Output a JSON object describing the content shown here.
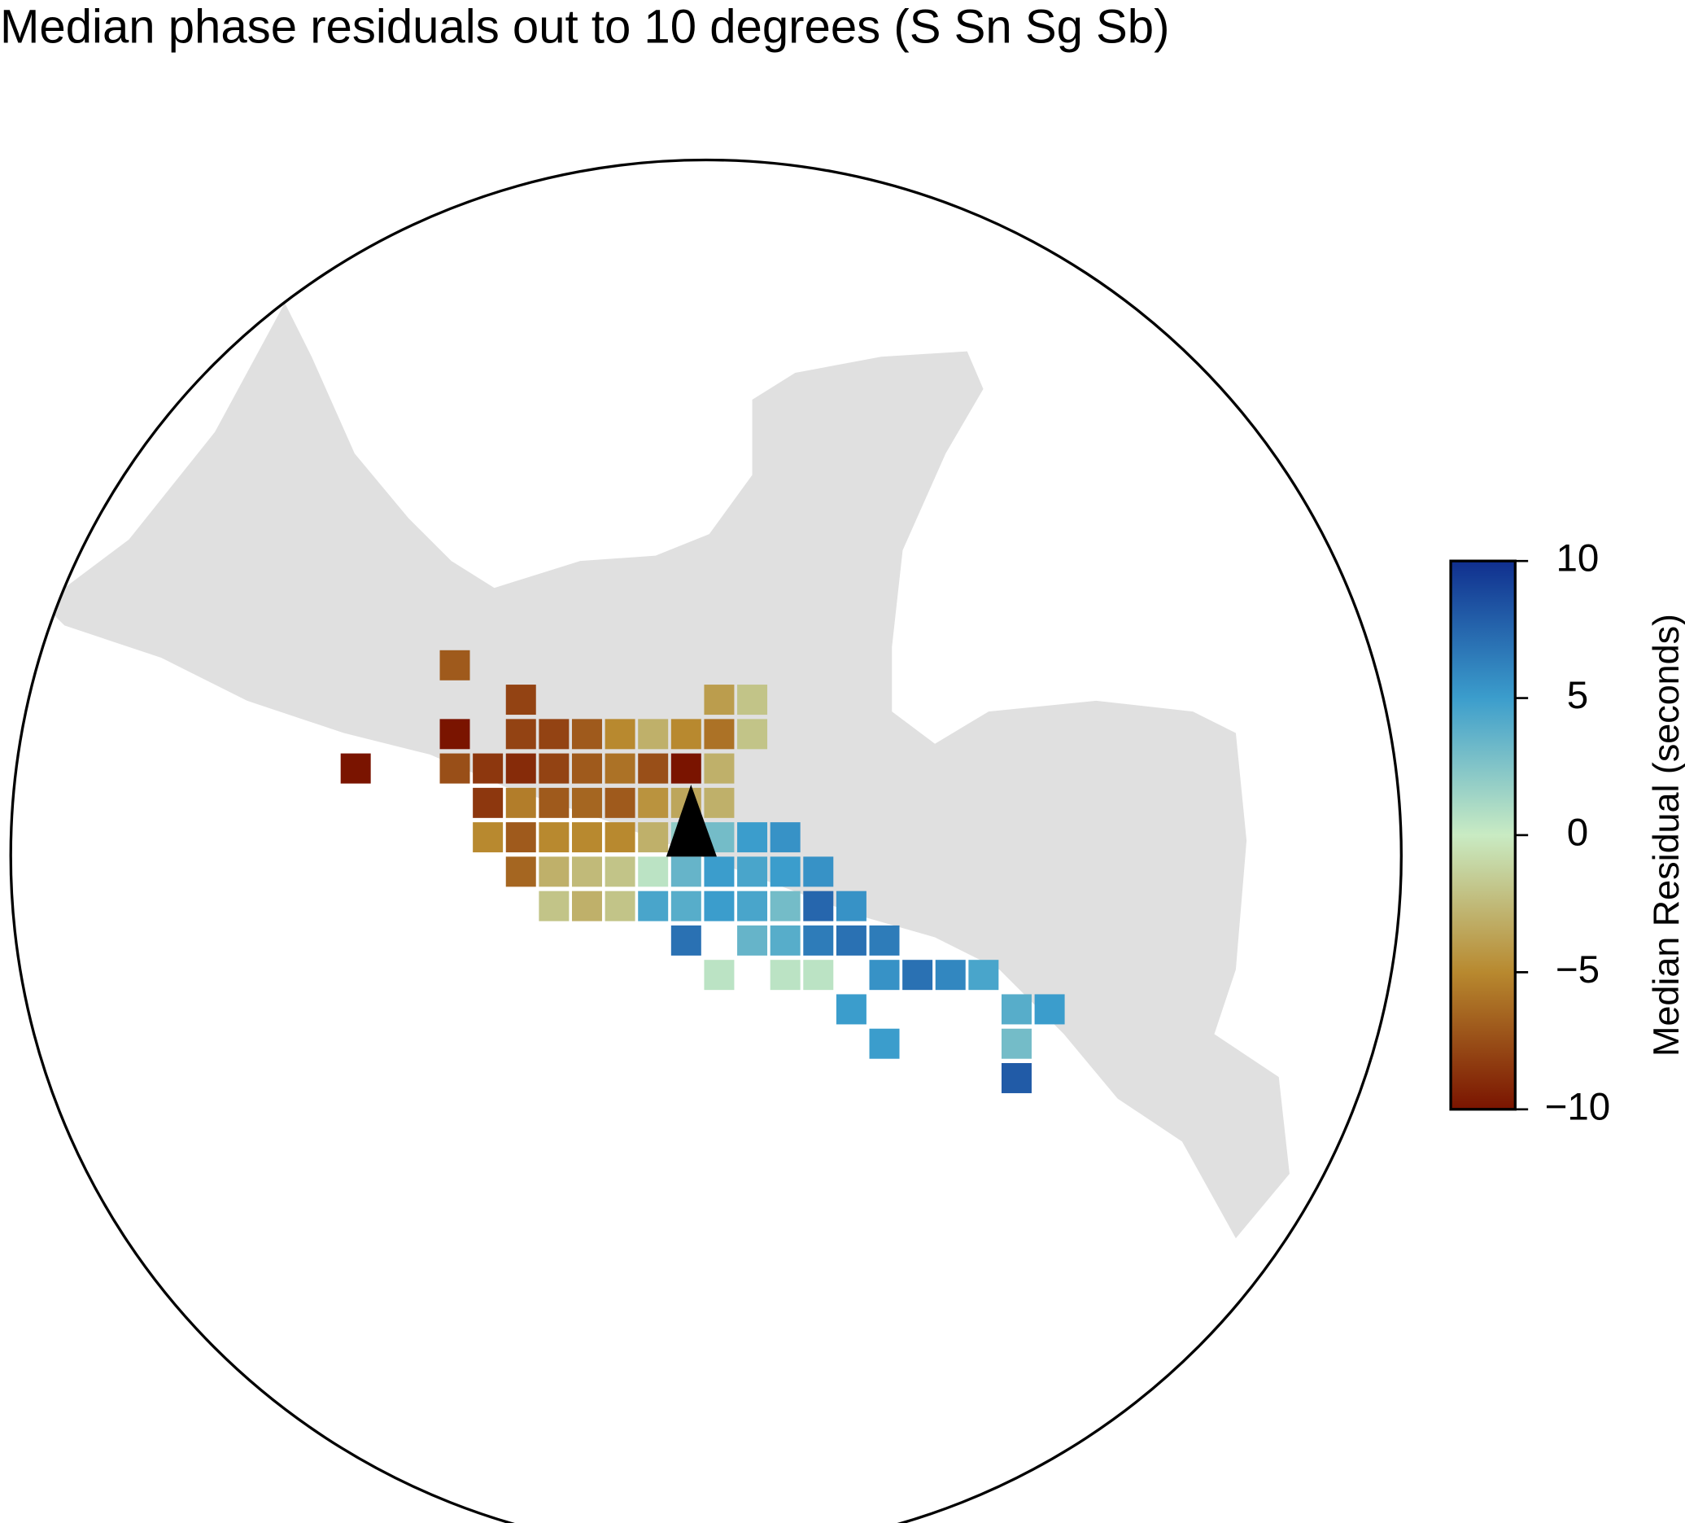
{
  "chart_data": {
    "type": "grid-map",
    "title": "Median phase residuals out to 10 degrees (S Sn Sg Sb)",
    "zlabel": "Median Residual (seconds)",
    "zlim": [
      -10,
      10
    ],
    "zticks": [
      {
        "value": -10,
        "label": "−10"
      },
      {
        "value": -5,
        "label": "−5"
      },
      0,
      5,
      10
    ],
    "colors": [
      "#7a1400",
      "#b8892f",
      "#c9ebc3",
      "#3b9dcc",
      "#102f8e"
    ],
    "rows": [
      [
        null,
        null,
        null,
        -7,
        null,
        null,
        null,
        null,
        null,
        null,
        null,
        null,
        null,
        null,
        null,
        null,
        null,
        null,
        null,
        null,
        null,
        null
      ],
      [
        null,
        null,
        null,
        null,
        null,
        -8,
        null,
        null,
        null,
        null,
        null,
        -4,
        -2,
        null,
        null,
        null,
        null,
        null,
        null,
        null,
        null,
        null
      ],
      [
        null,
        null,
        null,
        -10,
        null,
        -8,
        -8,
        -7,
        -5,
        -3,
        -5,
        -6,
        -2,
        null,
        null,
        null,
        null,
        null,
        null,
        null,
        null,
        null
      ],
      [
        -10,
        null,
        null,
        -7.5,
        -8.5,
        -9,
        -8,
        -7,
        -6,
        -7.5,
        -10,
        -3,
        null,
        null,
        null,
        null,
        null,
        null,
        null,
        null,
        null,
        null
      ],
      [
        null,
        null,
        null,
        null,
        -8.5,
        -5.5,
        -7,
        -6.5,
        -7,
        -4.5,
        -3.5,
        -3,
        null,
        null,
        null,
        null,
        null,
        null,
        null,
        null,
        null,
        null
      ],
      [
        null,
        null,
        null,
        null,
        -5,
        -7,
        -5,
        -5,
        -5,
        -3,
        2,
        3,
        5,
        5.5,
        null,
        null,
        null,
        null,
        null,
        null,
        null,
        null
      ],
      [
        null,
        null,
        null,
        null,
        null,
        -6.5,
        -3,
        -2.5,
        -2,
        0.5,
        3.5,
        5,
        4.5,
        5,
        5.5,
        null,
        null,
        null,
        null,
        null,
        null,
        null
      ],
      [
        null,
        null,
        null,
        null,
        null,
        null,
        -2,
        -3,
        -2,
        4.5,
        4,
        5,
        4.5,
        3,
        7.5,
        5.5,
        null,
        null,
        null,
        null,
        null,
        null
      ],
      [
        null,
        null,
        null,
        null,
        null,
        null,
        null,
        null,
        null,
        null,
        7,
        null,
        3.5,
        4,
        6.5,
        7,
        6.5,
        null,
        null,
        null,
        null,
        null
      ],
      [
        null,
        null,
        null,
        null,
        null,
        null,
        null,
        null,
        null,
        null,
        null,
        0.5,
        null,
        0.5,
        0.5,
        null,
        5.5,
        7,
        6,
        4.5,
        null,
        null
      ],
      [
        null,
        null,
        null,
        null,
        null,
        null,
        null,
        null,
        null,
        null,
        null,
        null,
        null,
        null,
        null,
        5,
        null,
        null,
        null,
        null,
        4,
        5
      ],
      [
        null,
        null,
        null,
        null,
        null,
        null,
        null,
        null,
        null,
        null,
        null,
        null,
        null,
        null,
        null,
        null,
        5,
        null,
        null,
        null,
        3,
        null
      ],
      [
        null,
        null,
        null,
        null,
        null,
        null,
        null,
        null,
        null,
        null,
        null,
        null,
        null,
        null,
        null,
        null,
        null,
        null,
        null,
        null,
        8,
        null
      ]
    ]
  }
}
